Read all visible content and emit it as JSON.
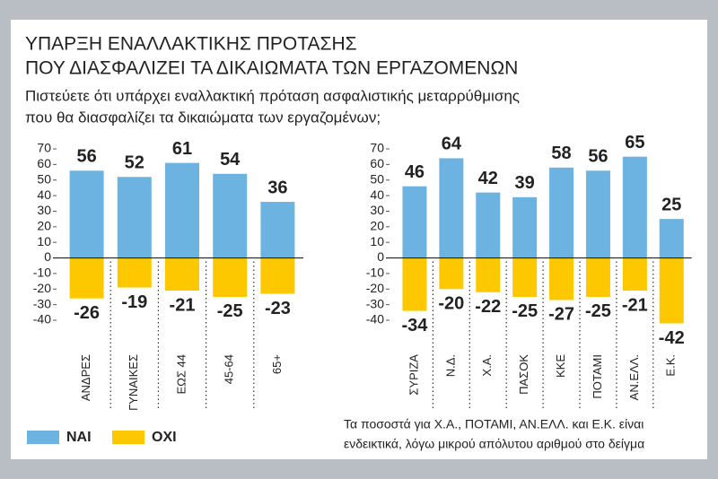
{
  "title": [
    "ΥΠΑΡΞΗ ΕΝΑΛΛΑΚΤΙΚΗΣ ΠΡΟΤΑΣΗΣ",
    "ΠΟΥ ΔΙΑΣΦΑΛΙΖΕΙ ΤΑ ΔΙΚΑΙΩΜΑΤΑ ΤΩΝ ΕΡΓΑΖΟΜΕΝΩΝ"
  ],
  "subtitle": [
    "Πιστεύετε ότι υπάρχει εναλλακτική πρόταση ασφαλιστικής μεταρρύθμισης",
    "που θα διασφαλίζει τα δικαιώματα των εργαζομένων;"
  ],
  "note": [
    "Τα ποσοστά για Χ.Α., ΠΟΤΑΜΙ, ΑΝ.ΕΛΛ. και Ε.Κ. είναι",
    "ενδεικτικά, λόγω μικρού απόλυτου αριθμού στο δείγμα"
  ],
  "chart_data": [
    {
      "type": "bar",
      "categories": [
        "ΑΝΔΡΕΣ",
        "ΓΥΝΑΙΚΕΣ",
        "ΕΩΣ 44",
        "45-64",
        "65+"
      ],
      "series": [
        {
          "name": "ΝΑΙ",
          "color": "#6db3e2",
          "values": [
            56,
            52,
            61,
            54,
            36
          ]
        },
        {
          "name": "ΟΧΙ",
          "color": "#fdc800",
          "values": [
            -26,
            -19,
            -21,
            -25,
            -23
          ]
        }
      ],
      "ylim": [
        -40,
        70
      ],
      "yticks": [
        70,
        60,
        50,
        40,
        30,
        20,
        10,
        0,
        -10,
        -20,
        -30,
        -40
      ]
    },
    {
      "type": "bar",
      "categories": [
        "ΣΥΡΙΖΑ",
        "Ν.Δ.",
        "Χ.Α.",
        "ΠΑΣΟΚ",
        "ΚΚΕ",
        "ΠΟΤΑΜΙ",
        "ΑΝ.ΕΛΛ.",
        "Ε.Κ."
      ],
      "series": [
        {
          "color": "#6db3e2",
          "values": [
            46,
            64,
            42,
            39,
            58,
            56,
            65,
            25
          ]
        },
        {
          "color": "#fdc800",
          "values": [
            -34,
            -20,
            -22,
            -25,
            -27,
            -25,
            -21,
            -42
          ]
        }
      ],
      "ylim": [
        -40,
        70
      ],
      "yticks": [
        70,
        60,
        50,
        40,
        30,
        20,
        10,
        0,
        -10,
        -20,
        -30,
        -40
      ]
    }
  ]
}
